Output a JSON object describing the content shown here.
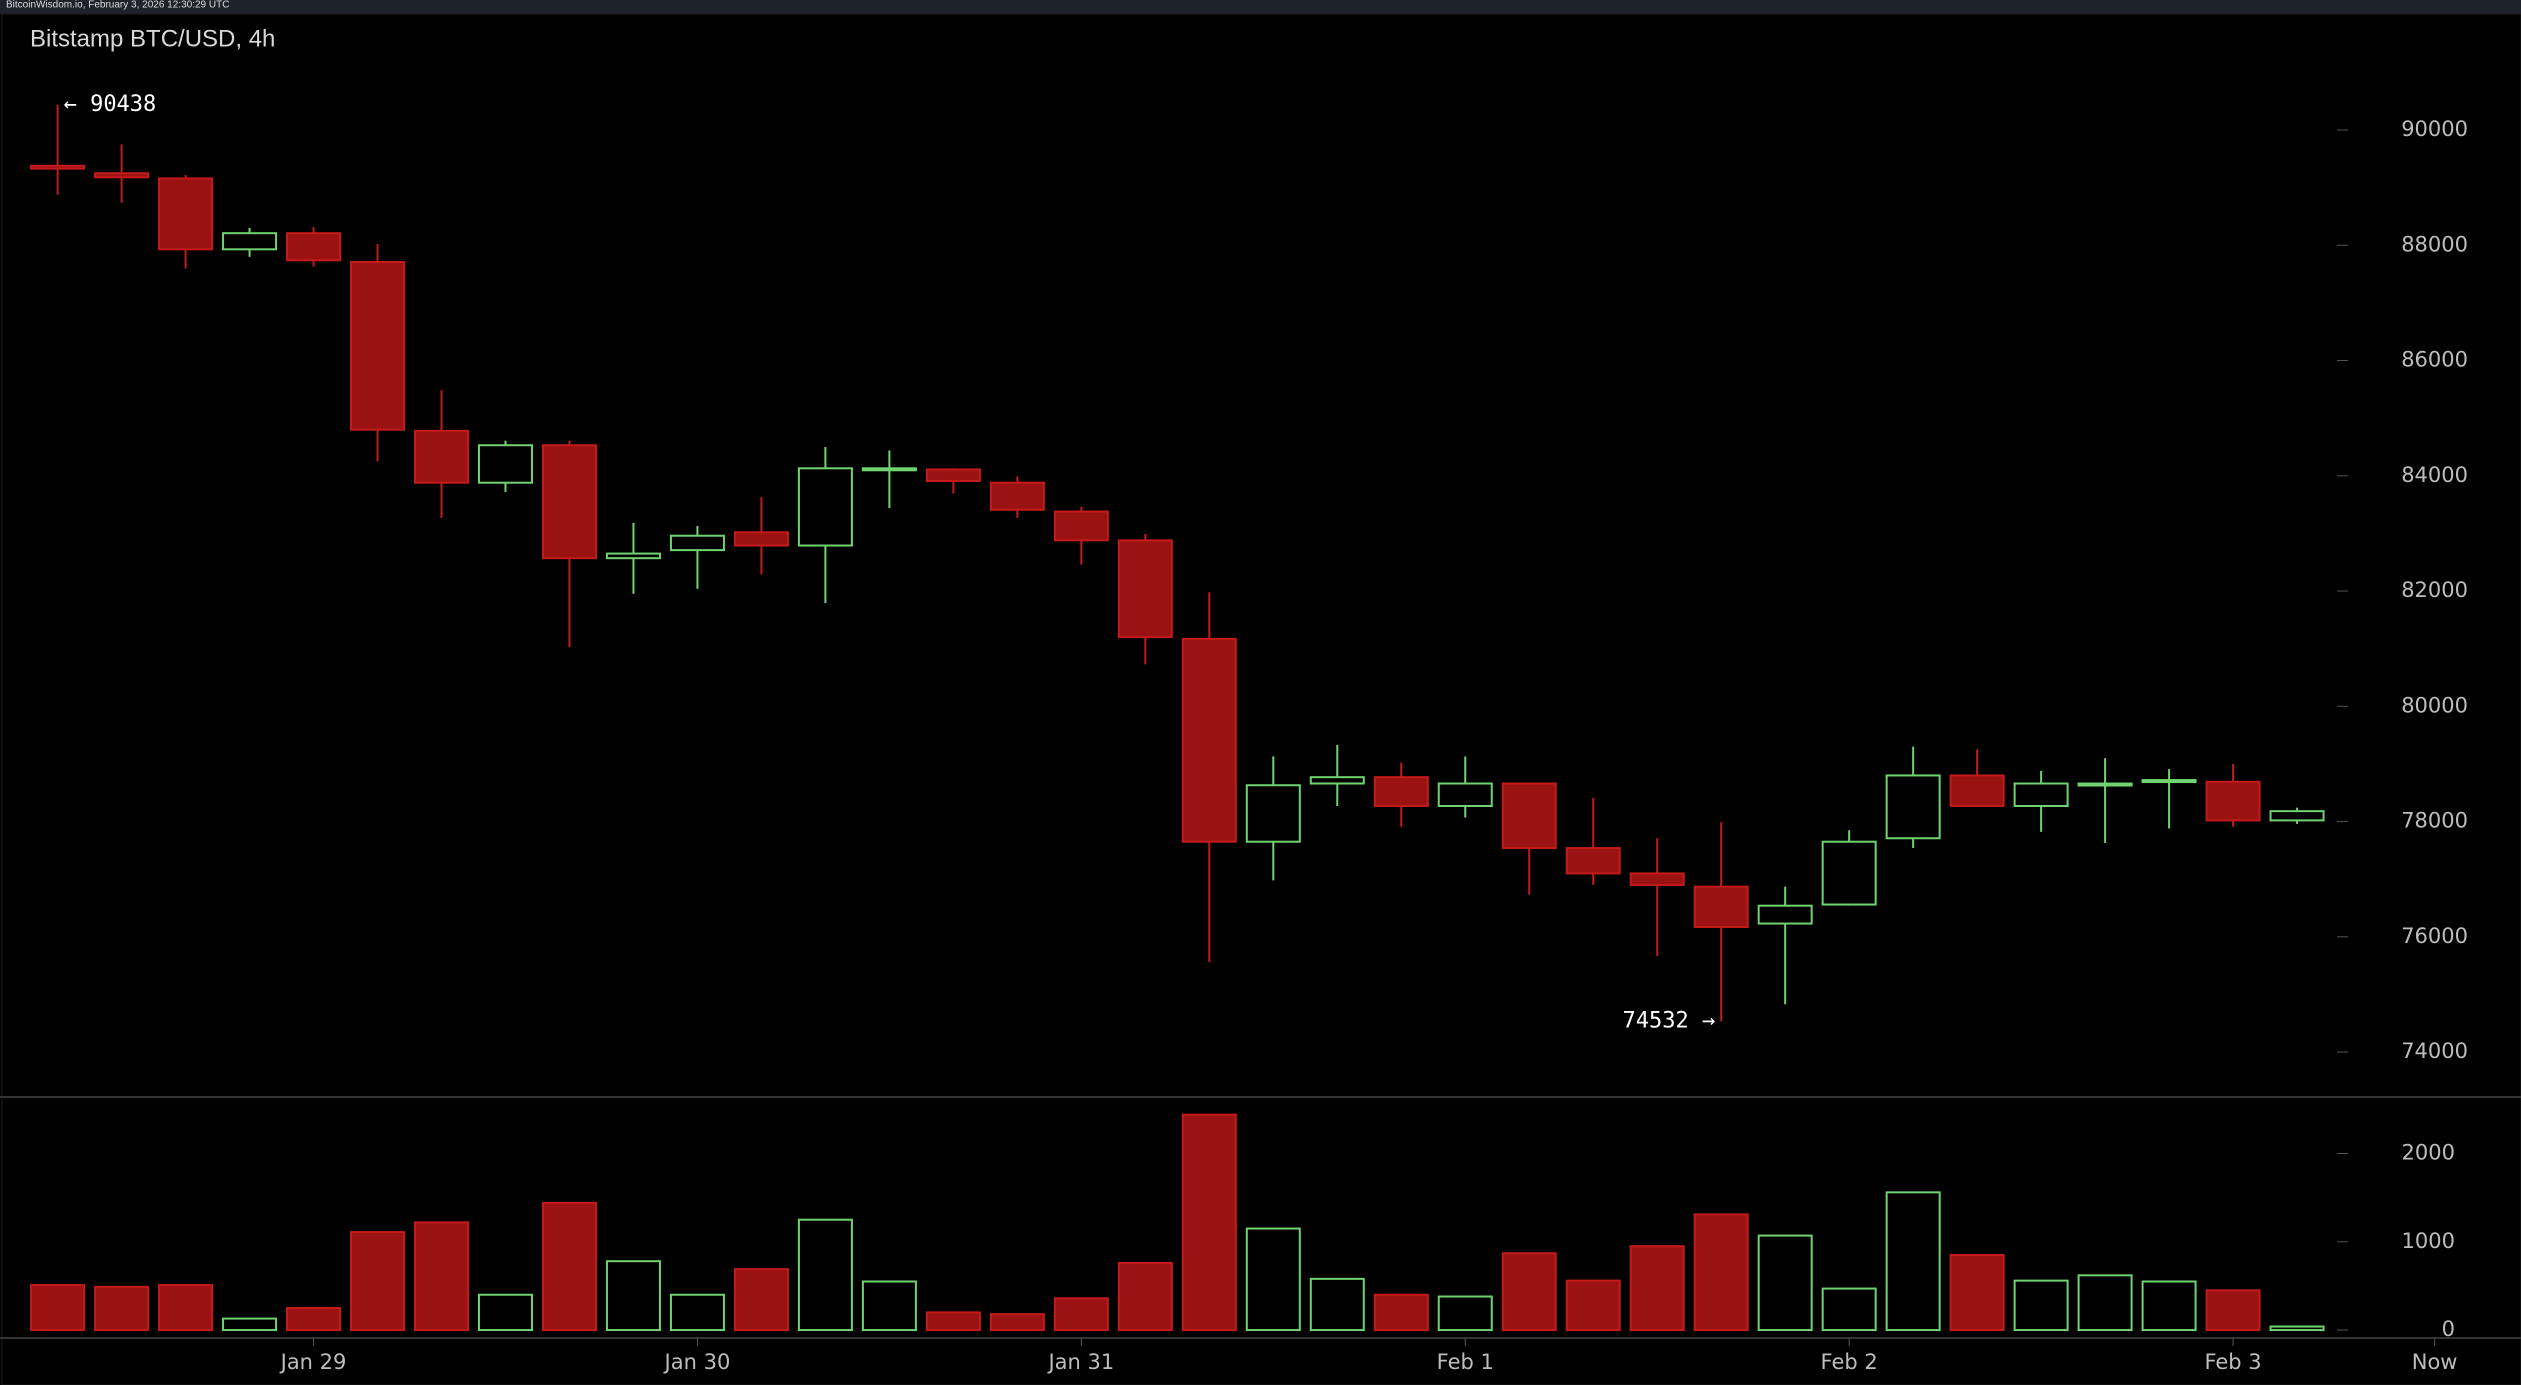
{
  "header": "BitcoinWisdom.io, February 3, 2026 12:30:29 UTC",
  "chart_data": {
    "type": "candlestick",
    "title": "Bitstamp BTC/USD, 4h",
    "up_color": "#6fd36f",
    "down_color": "#c41a1a",
    "down_fill": "#9a1212",
    "open": [
      89380,
      89250,
      89160,
      87930,
      88210,
      87710,
      84780,
      83880,
      84530,
      82570,
      82710,
      83020,
      82790,
      84110,
      84110,
      83880,
      83380,
      82880,
      81170,
      77650,
      78660,
      78770,
      78270,
      78660,
      77540,
      77100,
      76870,
      76230,
      76560,
      77710,
      78800,
      78270,
      78640,
      78690,
      78690,
      78020
    ],
    "high": [
      90438,
      89750,
      89220,
      88300,
      88320,
      88020,
      85480,
      84610,
      84610,
      83180,
      83130,
      83630,
      84500,
      84440,
      84130,
      83990,
      83460,
      82990,
      81980,
      79130,
      79330,
      79020,
      79130,
      78660,
      78410,
      77710,
      77990,
      76870,
      77850,
      79300,
      79250,
      78880,
      79100,
      78910,
      79000,
      78240
    ],
    "low": [
      88880,
      88740,
      87600,
      87800,
      87630,
      84250,
      83270,
      83720,
      81030,
      81950,
      82040,
      82290,
      81790,
      83440,
      83690,
      83270,
      82460,
      80730,
      75560,
      76980,
      78270,
      77910,
      78070,
      76730,
      76900,
      75670,
      74532,
      74830,
      76540,
      77540,
      78270,
      77820,
      77630,
      77880,
      77910,
      77960
    ],
    "close": [
      89330,
      89180,
      87930,
      88210,
      87740,
      84800,
      83880,
      84530,
      82570,
      82650,
      82960,
      82790,
      84130,
      84130,
      83910,
      83410,
      82880,
      81200,
      77650,
      78630,
      78770,
      78270,
      78660,
      77540,
      77100,
      76900,
      76170,
      76540,
      77650,
      78800,
      78270,
      78660,
      78660,
      78720,
      78020,
      78180
    ],
    "volume": [
      510,
      490,
      510,
      130,
      250,
      1110,
      1220,
      400,
      1440,
      780,
      400,
      690,
      1250,
      550,
      200,
      180,
      360,
      760,
      2440,
      1150,
      580,
      400,
      380,
      870,
      560,
      950,
      1310,
      1070,
      470,
      1560,
      850,
      560,
      620,
      550,
      450,
      40
    ],
    "ylim": [
      73220,
      91840
    ],
    "yticks": [
      74000,
      76000,
      78000,
      80000,
      82000,
      84000,
      86000,
      88000,
      90000
    ],
    "volume_ylim": [
      -90,
      2640
    ],
    "volume_ticks": [
      0,
      1000,
      2000
    ],
    "xlim": [
      -0.9,
      38.5
    ],
    "xticks": [
      {
        "value": 4,
        "label": "Jan 29"
      },
      {
        "value": 10,
        "label": "Jan 30"
      },
      {
        "value": 16,
        "label": "Jan 31"
      },
      {
        "value": 22,
        "label": "Feb 1"
      },
      {
        "value": 28,
        "label": "Feb 2"
      },
      {
        "value": 34,
        "label": "Feb 3"
      },
      {
        "value": 37.15,
        "label": "Now"
      }
    ],
    "annotations": [
      {
        "value": 90438,
        "index": 0,
        "label": "← 90438",
        "side": "right"
      },
      {
        "value": 74532,
        "index": 26,
        "label": "74532 →",
        "side": "left"
      }
    ]
  }
}
